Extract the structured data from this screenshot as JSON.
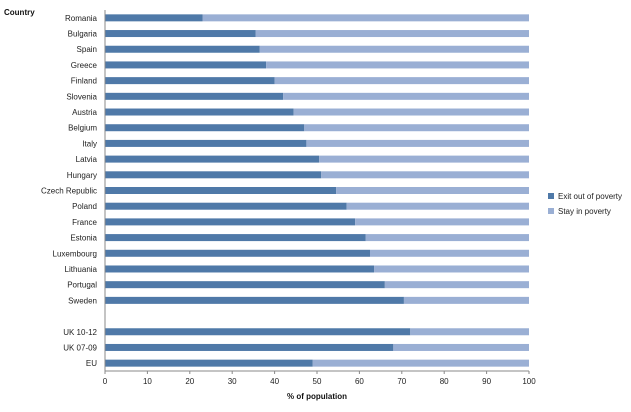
{
  "chart_data": {
    "type": "bar",
    "orientation": "horizontal",
    "stacked": true,
    "ylabel": "Country",
    "xlabel": "% of population",
    "xlim": [
      0,
      100
    ],
    "xticks": [
      0,
      10,
      20,
      30,
      40,
      50,
      60,
      70,
      80,
      90,
      100
    ],
    "grid": false,
    "legend_position": "right",
    "categories": [
      "Romania",
      "Bulgaria",
      "Spain",
      "Greece",
      "Finland",
      "Slovenia",
      "Austria",
      "Belgium",
      "Italy",
      "Latvia",
      "Hungary",
      "Czech Republic",
      "Poland",
      "France",
      "Estonia",
      "Luxembourg",
      "Lithuania",
      "Portugal",
      "Sweden",
      "",
      "UK 10-12",
      "UK 07-09",
      "EU"
    ],
    "series": [
      {
        "name": "Exit out of poverty",
        "color": "#4f79a8",
        "values": [
          23,
          35.5,
          36.5,
          38,
          40,
          42,
          44.5,
          47,
          47.5,
          50.5,
          51,
          54.5,
          57,
          59,
          61.5,
          62.5,
          63.5,
          66,
          70.5,
          null,
          72,
          68,
          49
        ]
      },
      {
        "name": "Stay in poverty",
        "color": "#9aafd4",
        "values": [
          77,
          64.5,
          63.5,
          62,
          60,
          58,
          55.5,
          53,
          52.5,
          49.5,
          49,
          45.5,
          43,
          41,
          38.5,
          37.5,
          36.5,
          34,
          29.5,
          null,
          28,
          32,
          51
        ]
      }
    ]
  }
}
